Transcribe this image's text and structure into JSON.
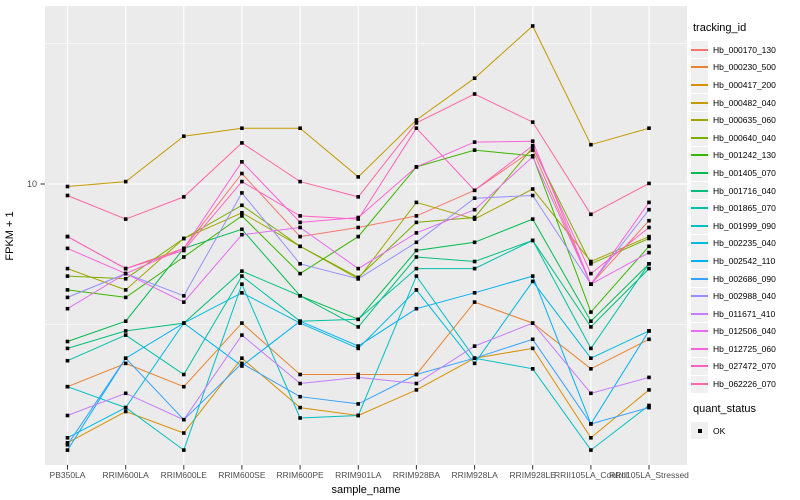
{
  "chart_data": {
    "type": "line",
    "title": "",
    "xlabel": "sample_name",
    "ylabel": "FPKM + 1",
    "y_scale": "log10",
    "ylim": [
      1,
      43
    ],
    "y_major_ticks": [
      {
        "label": "10",
        "value": 10
      }
    ],
    "y_minor_tick_values": [
      3.162,
      31.62
    ],
    "grid": true,
    "legend_position": "right",
    "panel_bg": "#EBEBEB",
    "grid_color": "#FFFFFF",
    "point_shape": "square",
    "point_color": "#000000",
    "categories": [
      "PB350LA",
      "RRIM600LA",
      "RRIM600LE",
      "RRIM600SE",
      "RRIM600PE",
      "RRIM901LA",
      "RRIM928BA",
      "RRIM928LA",
      "RRIM928LE",
      "RRII105LA_Control",
      "RRII105LA_Stressed"
    ],
    "series": [
      {
        "name": "Hb_000170_130",
        "color": "#F8766D",
        "values": [
          6.5,
          5.0,
          5.9,
          10.9,
          6.5,
          7.0,
          7.7,
          9.5,
          13.2,
          4.4,
          7.4
        ]
      },
      {
        "name": "Hb_000230_500",
        "color": "#EA8331",
        "values": [
          1.9,
          2.3,
          1.9,
          3.2,
          2.1,
          2.1,
          2.1,
          3.8,
          3.2,
          2.2,
          2.8
        ]
      },
      {
        "name": "Hb_000417_200",
        "color": "#D89000",
        "values": [
          1.2,
          1.55,
          1.3,
          2.4,
          1.6,
          1.5,
          1.85,
          2.4,
          2.6,
          1.25,
          1.85
        ]
      },
      {
        "name": "Hb_000482_040",
        "color": "#C49A00",
        "values": [
          9.8,
          10.2,
          14.8,
          15.8,
          15.8,
          10.6,
          16.9,
          23.8,
          36.5,
          13.8,
          15.8
        ]
      },
      {
        "name": "Hb_000635_060",
        "color": "#A3A500",
        "values": [
          5.0,
          4.2,
          6.4,
          7.9,
          6.0,
          4.6,
          8.6,
          7.5,
          9.6,
          5.3,
          6.5
        ]
      },
      {
        "name": "Hb_000640_040",
        "color": "#7CAE00",
        "values": [
          4.7,
          4.6,
          6.4,
          8.4,
          6.0,
          4.65,
          7.3,
          7.6,
          13.5,
          5.2,
          6.4
        ]
      },
      {
        "name": "Hb_001242_130",
        "color": "#39B600",
        "values": [
          4.2,
          3.95,
          5.5,
          7.7,
          4.8,
          6.5,
          11.5,
          13.2,
          12.6,
          3.5,
          6.0
        ]
      },
      {
        "name": "Hb_001405_070",
        "color": "#00BB4E",
        "values": [
          2.75,
          3.25,
          5.9,
          6.9,
          4.0,
          3.3,
          5.8,
          6.2,
          7.5,
          3.25,
          5.2
        ]
      },
      {
        "name": "Hb_001716_040",
        "color": "#00BF7D",
        "values": [
          2.6,
          3.0,
          3.2,
          4.9,
          4.0,
          3.1,
          5.5,
          5.3,
          6.3,
          3.1,
          5.0
        ]
      },
      {
        "name": "Hb_001865_070",
        "color": "#00C1A3",
        "values": [
          2.35,
          2.9,
          2.1,
          4.7,
          3.25,
          3.3,
          5.0,
          5.0,
          6.3,
          2.6,
          5.2
        ]
      },
      {
        "name": "Hb_001999_090",
        "color": "#00BFC4",
        "values": [
          1.9,
          1.6,
          1.13,
          4.4,
          1.47,
          1.5,
          4.7,
          2.4,
          2.2,
          1.13,
          1.63
        ]
      },
      {
        "name": "Hb_002235_040",
        "color": "#00BAE0",
        "values": [
          1.25,
          1.6,
          3.2,
          4.1,
          3.2,
          2.6,
          4.2,
          2.3,
          4.5,
          2.4,
          3.0
        ]
      },
      {
        "name": "Hb_002542_110",
        "color": "#00B0F6",
        "values": [
          1.13,
          2.4,
          3.2,
          2.25,
          3.25,
          2.65,
          3.6,
          4.1,
          4.7,
          1.4,
          3.0
        ]
      },
      {
        "name": "Hb_002686_090",
        "color": "#35A2FF",
        "values": [
          1.18,
          2.4,
          1.45,
          2.3,
          1.75,
          1.65,
          2.1,
          2.4,
          2.8,
          1.4,
          1.6
        ]
      },
      {
        "name": "Hb_002988_040",
        "color": "#9590FF",
        "values": [
          3.95,
          4.8,
          4.0,
          9.3,
          5.2,
          4.6,
          6.2,
          8.9,
          9.1,
          4.4,
          8.1
        ]
      },
      {
        "name": "Hb_011671_410",
        "color": "#C77CFF",
        "values": [
          1.5,
          1.8,
          1.45,
          2.9,
          1.95,
          2.05,
          1.95,
          2.65,
          3.2,
          1.8,
          2.05
        ]
      },
      {
        "name": "Hb_012506_040",
        "color": "#E76BF3",
        "values": [
          3.6,
          4.8,
          3.8,
          6.6,
          7.0,
          5.0,
          6.7,
          8.1,
          12.5,
          4.4,
          5.7
        ]
      },
      {
        "name": "Hb_012725_060",
        "color": "#FA62DB",
        "values": [
          5.9,
          4.8,
          5.9,
          12.0,
          7.3,
          7.6,
          11.5,
          14.1,
          14.2,
          4.4,
          8.6
        ]
      },
      {
        "name": "Hb_027472_070",
        "color": "#FF61C3",
        "values": [
          6.5,
          5.0,
          5.8,
          10.2,
          7.7,
          7.5,
          15.8,
          9.5,
          13.7,
          4.8,
          7.0
        ]
      },
      {
        "name": "Hb_062226_070",
        "color": "#FF67A4",
        "values": [
          9.1,
          7.5,
          9.0,
          14.0,
          10.2,
          9.0,
          16.5,
          20.9,
          16.6,
          7.8,
          10.05
        ]
      }
    ]
  },
  "legend": {
    "tracking_title": "tracking_id",
    "quant_title": "quant_status",
    "quant_items": [
      {
        "label": "OK",
        "shape": "square",
        "color": "#000000"
      }
    ]
  },
  "axis": {
    "tick_text_color": "#4D4D4D",
    "tick_mark_color": "#333333"
  }
}
